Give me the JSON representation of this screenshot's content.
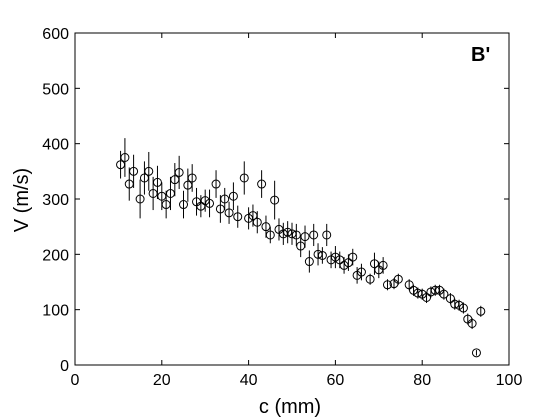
{
  "chart_data": {
    "type": "scatter",
    "title": "",
    "panel_label": "B'",
    "xlabel": "c (mm)",
    "ylabel": "V (m/s)",
    "xlim": [
      0,
      100
    ],
    "ylim": [
      0,
      600
    ],
    "xticks": [
      0,
      20,
      40,
      60,
      80,
      100
    ],
    "yticks": [
      0,
      100,
      200,
      300,
      400,
      500,
      600
    ],
    "grid": false,
    "legend": "none",
    "marker": "open-circle",
    "color": "#000000",
    "points": [
      {
        "x": 10.5,
        "y": 362,
        "err": 25
      },
      {
        "x": 11.5,
        "y": 375,
        "err": 35
      },
      {
        "x": 12.5,
        "y": 327,
        "err": 30
      },
      {
        "x": 13.5,
        "y": 350,
        "err": 30
      },
      {
        "x": 15.0,
        "y": 300,
        "err": 35
      },
      {
        "x": 16.0,
        "y": 338,
        "err": 30
      },
      {
        "x": 17.0,
        "y": 350,
        "err": 35
      },
      {
        "x": 18.0,
        "y": 310,
        "err": 30
      },
      {
        "x": 19.0,
        "y": 330,
        "err": 30
      },
      {
        "x": 20.0,
        "y": 305,
        "err": 25
      },
      {
        "x": 21.0,
        "y": 290,
        "err": 25
      },
      {
        "x": 22.0,
        "y": 310,
        "err": 30
      },
      {
        "x": 23.0,
        "y": 335,
        "err": 30
      },
      {
        "x": 24.0,
        "y": 348,
        "err": 30
      },
      {
        "x": 25.0,
        "y": 290,
        "err": 25
      },
      {
        "x": 26.0,
        "y": 325,
        "err": 30
      },
      {
        "x": 27.0,
        "y": 338,
        "err": 25
      },
      {
        "x": 28.0,
        "y": 295,
        "err": 25
      },
      {
        "x": 29.0,
        "y": 287,
        "err": 20
      },
      {
        "x": 30.0,
        "y": 297,
        "err": 20
      },
      {
        "x": 31.0,
        "y": 292,
        "err": 25
      },
      {
        "x": 32.5,
        "y": 327,
        "err": 25
      },
      {
        "x": 33.5,
        "y": 282,
        "err": 25
      },
      {
        "x": 34.5,
        "y": 300,
        "err": 20
      },
      {
        "x": 35.5,
        "y": 275,
        "err": 20
      },
      {
        "x": 36.5,
        "y": 305,
        "err": 25
      },
      {
        "x": 37.5,
        "y": 268,
        "err": 20
      },
      {
        "x": 39.0,
        "y": 338,
        "err": 30
      },
      {
        "x": 40.0,
        "y": 265,
        "err": 20
      },
      {
        "x": 41.0,
        "y": 270,
        "err": 20
      },
      {
        "x": 42.0,
        "y": 258,
        "err": 20
      },
      {
        "x": 43.0,
        "y": 327,
        "err": 25
      },
      {
        "x": 44.0,
        "y": 250,
        "err": 20
      },
      {
        "x": 45.0,
        "y": 235,
        "err": 15
      },
      {
        "x": 46.0,
        "y": 298,
        "err": 35
      },
      {
        "x": 47.0,
        "y": 245,
        "err": 20
      },
      {
        "x": 48.0,
        "y": 237,
        "err": 20
      },
      {
        "x": 49.0,
        "y": 240,
        "err": 20
      },
      {
        "x": 50.0,
        "y": 237,
        "err": 20
      },
      {
        "x": 51.0,
        "y": 235,
        "err": 20
      },
      {
        "x": 52.0,
        "y": 215,
        "err": 20
      },
      {
        "x": 53.0,
        "y": 232,
        "err": 20
      },
      {
        "x": 54.0,
        "y": 187,
        "err": 20
      },
      {
        "x": 55.0,
        "y": 235,
        "err": 20
      },
      {
        "x": 56.0,
        "y": 200,
        "err": 20
      },
      {
        "x": 57.0,
        "y": 198,
        "err": 15
      },
      {
        "x": 58.0,
        "y": 235,
        "err": 20
      },
      {
        "x": 59.0,
        "y": 190,
        "err": 15
      },
      {
        "x": 60.0,
        "y": 195,
        "err": 20
      },
      {
        "x": 61.0,
        "y": 190,
        "err": 15
      },
      {
        "x": 62.0,
        "y": 180,
        "err": 15
      },
      {
        "x": 63.0,
        "y": 185,
        "err": 15
      },
      {
        "x": 64.0,
        "y": 195,
        "err": 15
      },
      {
        "x": 65.0,
        "y": 162,
        "err": 15
      },
      {
        "x": 66.0,
        "y": 168,
        "err": 15
      },
      {
        "x": 68.0,
        "y": 155,
        "err": 10
      },
      {
        "x": 69.0,
        "y": 183,
        "err": 20
      },
      {
        "x": 70.0,
        "y": 172,
        "err": 15
      },
      {
        "x": 71.0,
        "y": 180,
        "err": 15
      },
      {
        "x": 72.0,
        "y": 145,
        "err": 10
      },
      {
        "x": 73.5,
        "y": 147,
        "err": 10
      },
      {
        "x": 74.5,
        "y": 155,
        "err": 10
      },
      {
        "x": 77.0,
        "y": 145,
        "err": 10
      },
      {
        "x": 78.0,
        "y": 135,
        "err": 10
      },
      {
        "x": 79.0,
        "y": 130,
        "err": 10
      },
      {
        "x": 80.0,
        "y": 128,
        "err": 10
      },
      {
        "x": 81.0,
        "y": 122,
        "err": 10
      },
      {
        "x": 82.0,
        "y": 132,
        "err": 10
      },
      {
        "x": 83.0,
        "y": 135,
        "err": 10
      },
      {
        "x": 84.0,
        "y": 135,
        "err": 10
      },
      {
        "x": 85.0,
        "y": 128,
        "err": 10
      },
      {
        "x": 86.5,
        "y": 120,
        "err": 10
      },
      {
        "x": 87.5,
        "y": 110,
        "err": 10
      },
      {
        "x": 88.5,
        "y": 108,
        "err": 10
      },
      {
        "x": 89.5,
        "y": 103,
        "err": 10
      },
      {
        "x": 90.5,
        "y": 83,
        "err": 10
      },
      {
        "x": 91.5,
        "y": 75,
        "err": 10
      },
      {
        "x": 92.5,
        "y": 22,
        "err": 5
      },
      {
        "x": 93.5,
        "y": 97,
        "err": 10
      }
    ]
  }
}
